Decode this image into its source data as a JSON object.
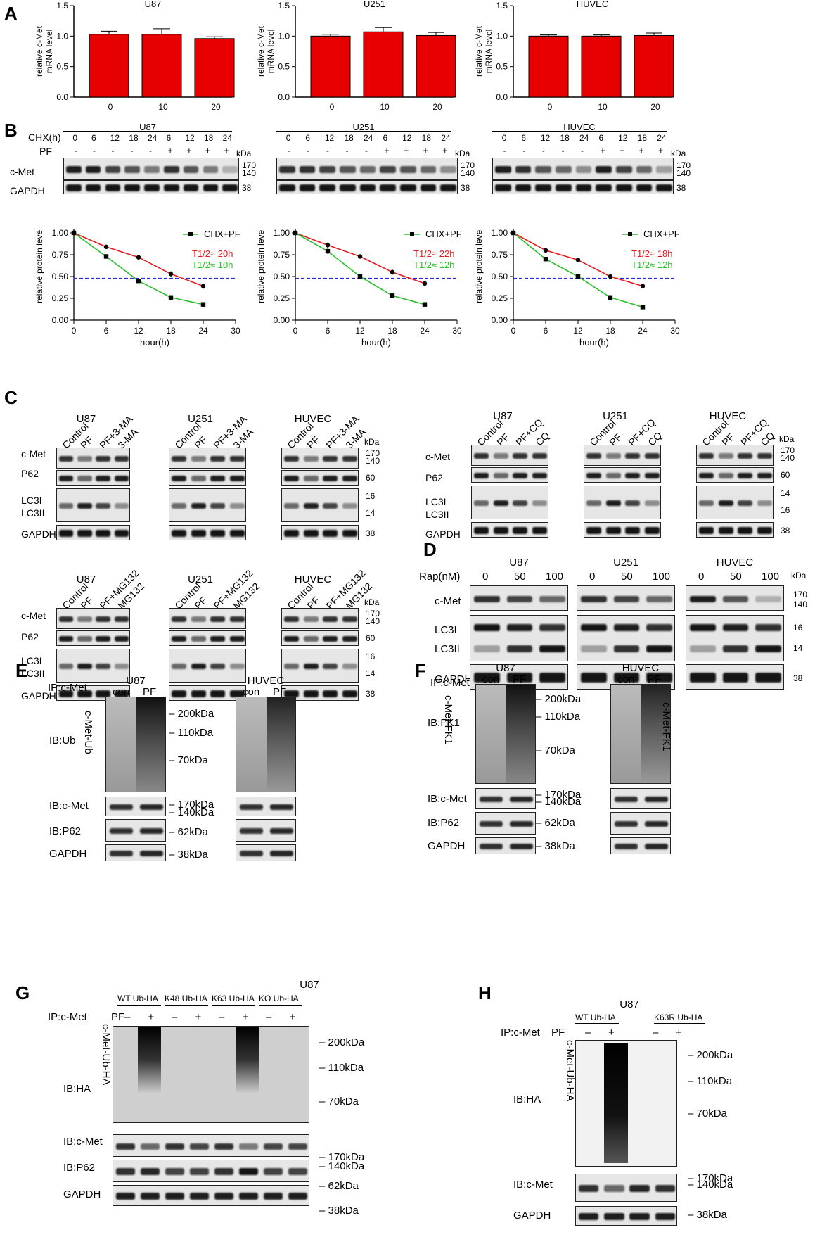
{
  "panels": {
    "A": "A",
    "B": "B",
    "C": "C",
    "D": "D",
    "E": "E",
    "F": "F",
    "G": "G",
    "H": "H"
  },
  "colors": {
    "red": "#e41a1c",
    "green": "#2bbf2b",
    "blue_dash": "#2b2bd6",
    "bar_red": "#e60000"
  },
  "chart_data": [
    {
      "type": "bar",
      "title": "U87",
      "ylabel": "relative c-Met mRNA level",
      "categories": [
        "0",
        "10",
        "20"
      ],
      "values": [
        1.03,
        1.03,
        0.96
      ],
      "errors": [
        0.05,
        0.09,
        0.03
      ],
      "ylim": [
        0,
        1.5
      ],
      "yticks": [
        "0.0",
        "0.5",
        "1.0",
        "1.5"
      ]
    },
    {
      "type": "bar",
      "title": "U251",
      "ylabel": "relative c-Met mRNA level",
      "categories": [
        "0",
        "10",
        "20"
      ],
      "values": [
        1.0,
        1.07,
        1.01
      ],
      "errors": [
        0.03,
        0.07,
        0.05
      ],
      "ylim": [
        0,
        1.5
      ],
      "yticks": [
        "0.0",
        "0.5",
        "1.0",
        "1.5"
      ]
    },
    {
      "type": "bar",
      "title": "HUVEC",
      "ylabel": "relative c-Met mRNA level",
      "categories": [
        "0",
        "10",
        "20"
      ],
      "values": [
        1.0,
        1.0,
        1.01
      ],
      "errors": [
        0.02,
        0.02,
        0.04
      ],
      "ylim": [
        0,
        1.5
      ],
      "yticks": [
        "0.0",
        "0.5",
        "1.0",
        "1.5"
      ]
    },
    {
      "type": "line",
      "xlabel": "hour(h)",
      "ylabel": "relative protein level",
      "x": [
        0,
        6,
        12,
        18,
        24
      ],
      "xlim": [
        0,
        30
      ],
      "ylim": [
        0,
        1.25
      ],
      "xticks": [
        "0",
        "6",
        "12",
        "18",
        "24",
        "30"
      ],
      "yticks": [
        "0.00",
        "0.25",
        "0.50",
        "0.75",
        "1.00",
        "1.25"
      ],
      "hline": 0.48,
      "series": [
        {
          "name": "CHX",
          "values": [
            1.0,
            0.84,
            0.72,
            0.53,
            0.39
          ],
          "errors": [
            0,
            0.02,
            0.02,
            0.03,
            0.03
          ]
        },
        {
          "name": "CHX+PF",
          "values": [
            1.0,
            0.73,
            0.45,
            0.26,
            0.18
          ],
          "errors": [
            0,
            0.02,
            0.02,
            0.02,
            0.01
          ]
        }
      ],
      "annotations": [
        "T1/2≈ 20h",
        "T1/2≈ 10h"
      ]
    },
    {
      "type": "line",
      "xlabel": "hour(h)",
      "ylabel": "relative protein level",
      "x": [
        0,
        6,
        12,
        18,
        24
      ],
      "xlim": [
        0,
        30
      ],
      "ylim": [
        0,
        1.25
      ],
      "xticks": [
        "0",
        "6",
        "12",
        "18",
        "24",
        "30"
      ],
      "yticks": [
        "0.00",
        "0.25",
        "0.50",
        "0.75",
        "1.00",
        "1.25"
      ],
      "hline": 0.48,
      "series": [
        {
          "name": "CHX",
          "values": [
            1.0,
            0.86,
            0.73,
            0.55,
            0.42
          ],
          "errors": [
            0,
            0.03,
            0.02,
            0.03,
            0.03
          ]
        },
        {
          "name": "CHX+PF",
          "values": [
            1.0,
            0.79,
            0.5,
            0.28,
            0.18
          ],
          "errors": [
            0,
            0.03,
            0.02,
            0.02,
            0.01
          ]
        }
      ],
      "annotations": [
        "T1/2≈ 22h",
        "T1/2≈ 12h"
      ]
    },
    {
      "type": "line",
      "xlabel": "hour(h)",
      "ylabel": "relative protein level",
      "x": [
        0,
        6,
        12,
        18,
        24
      ],
      "xlim": [
        0,
        30
      ],
      "ylim": [
        0,
        1.25
      ],
      "xticks": [
        "0",
        "6",
        "12",
        "18",
        "24",
        "30"
      ],
      "yticks": [
        "0.00",
        "0.25",
        "0.50",
        "0.75",
        "1.00",
        "1.25"
      ],
      "hline": 0.48,
      "series": [
        {
          "name": "CHX",
          "values": [
            1.0,
            0.8,
            0.69,
            0.5,
            0.39
          ],
          "errors": [
            0,
            0.02,
            0.02,
            0.03,
            0.02
          ]
        },
        {
          "name": "CHX+PF",
          "values": [
            1.0,
            0.7,
            0.5,
            0.26,
            0.15
          ],
          "errors": [
            0,
            0.02,
            0.02,
            0.02,
            0.01
          ]
        }
      ],
      "annotations": [
        "T1/2≈ 18h",
        "T1/2≈ 12h"
      ]
    }
  ],
  "B": {
    "cells": [
      "U87",
      "U251",
      "HUVEC"
    ],
    "chx_label": "CHX(h)",
    "pf_label": "PF",
    "kda": "kDa",
    "chx_values": [
      "0",
      "6",
      "12",
      "18",
      "24",
      "6",
      "12",
      "18",
      "24"
    ],
    "pf_values": [
      "-",
      "-",
      "-",
      "-",
      "-",
      "+",
      "+",
      "+",
      "+"
    ],
    "rows": [
      "c-Met",
      "GAPDH"
    ],
    "mw": [
      "170",
      "140",
      "38"
    ]
  },
  "C": {
    "cells": [
      "U87",
      "U251",
      "HUVEC"
    ],
    "lanes_3ma": [
      "Control",
      "PF",
      "PF+3-MA",
      "3-MA"
    ],
    "lanes_cq": [
      "Control",
      "PF",
      "PF+CQ",
      "CQ"
    ],
    "lanes_mg": [
      "Control",
      "PF",
      "PF+MG132",
      "MG132"
    ],
    "rows": [
      "c-Met",
      "P62",
      "LC3I",
      "LC3II",
      "GAPDH"
    ],
    "kda": "kDa",
    "mw_a": [
      "170",
      "140",
      "60",
      "16",
      "14",
      "38"
    ],
    "mw_b": [
      "170",
      "140",
      "60",
      "14",
      "16",
      "38"
    ]
  },
  "D": {
    "cells": [
      "U87",
      "U251",
      "HUVEC"
    ],
    "rap_label": "Rap(nM)",
    "doses": [
      "0",
      "50",
      "100"
    ],
    "kda": "kDa",
    "rows": [
      "c-Met",
      "LC3I",
      "LC3II",
      "GAPDH"
    ],
    "mw": [
      "170",
      "140",
      "16",
      "14",
      "38"
    ]
  },
  "E": {
    "cells": [
      "U87",
      "HUVEC"
    ],
    "ip": "IP:c-Met",
    "lanes": [
      "con",
      "PF"
    ],
    "ib_rows": [
      "IB:Ub",
      "IB:c-Met",
      "IB:P62",
      "GAPDH"
    ],
    "side": "c-Met-Ub",
    "mw": [
      "200kDa",
      "110kDa",
      "70kDa",
      "170kDa",
      "140kDa",
      "62kDa",
      "38kDa"
    ]
  },
  "F": {
    "cells": [
      "U87",
      "HUVEC"
    ],
    "ip": "IP:c-Met",
    "lanes": [
      "con",
      "PF"
    ],
    "ib_rows": [
      "IB:FK1",
      "IB:c-Met",
      "IB:P62",
      "GAPDH"
    ],
    "side": "c-Met-FK1",
    "mw": [
      "200kDa",
      "110kDa",
      "70kDa",
      "170kDa",
      "140kDa",
      "62kDa",
      "38kDa"
    ]
  },
  "G": {
    "cell": "U87",
    "ip": "IP:c-Met",
    "pf": "PF",
    "groups": [
      "WT  Ub-HA",
      "K48 Ub-HA",
      "K63 Ub-HA",
      "KO Ub-HA"
    ],
    "signs": [
      "–",
      "+",
      "–",
      "+",
      "–",
      "+",
      "–",
      "+"
    ],
    "ib_rows": [
      "IB:HA",
      "IB:c-Met",
      "IB:P62",
      "GAPDH"
    ],
    "side": "c-Met-Ub-HA",
    "mw": [
      "200kDa",
      "110kDa",
      "70kDa",
      "170kDa",
      "140kDa",
      "62kDa",
      "38kDa"
    ]
  },
  "H": {
    "cell": "U87",
    "ip": "IP:c-Met",
    "pf": "PF",
    "groups": [
      "WT  Ub-HA",
      "K63R Ub-HA"
    ],
    "signs": [
      "–",
      "+",
      "–",
      "+"
    ],
    "ib_rows": [
      "IB:HA",
      "IB:c-Met",
      "GAPDH"
    ],
    "side": "c-Met-Ub-HA",
    "mw": [
      "200kDa",
      "110kDa",
      "70kDa",
      "170kDa",
      "140kDa",
      "38kDa"
    ]
  }
}
